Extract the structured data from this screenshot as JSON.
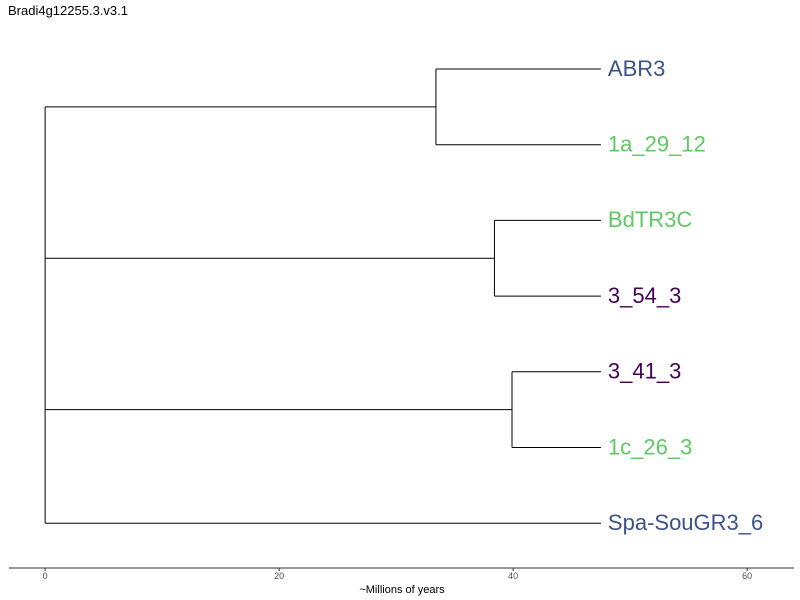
{
  "title": "Bradi4g12255.3.v3.1",
  "chart_data": {
    "type": "dendrogram",
    "title": "Bradi4g12255.3.v3.1",
    "xlabel": "~Millions of years",
    "ylabel": "",
    "xlim": [
      -3,
      64
    ],
    "xticks": [
      0,
      20,
      40,
      60
    ],
    "grid": false,
    "legend": "none",
    "tips": [
      {
        "label": "ABR3",
        "color": "#3b528b"
      },
      {
        "label": "1a_29_12",
        "color": "#5ec962"
      },
      {
        "label": "BdTR3C",
        "color": "#5ec962"
      },
      {
        "label": "3_54_3",
        "color": "#440154"
      },
      {
        "label": "3_41_3",
        "color": "#440154"
      },
      {
        "label": "1c_26_3",
        "color": "#5ec962"
      },
      {
        "label": "Spa-SouGR3_6",
        "color": "#3b528b"
      }
    ],
    "tip_age": 47.5,
    "clades": [
      {
        "tips": [
          0,
          1
        ],
        "height": 33.4
      },
      {
        "tips": [
          2,
          3
        ],
        "height": 38.4
      },
      {
        "tips": [
          4,
          5
        ],
        "height": 39.9
      }
    ],
    "root_height": 0
  }
}
